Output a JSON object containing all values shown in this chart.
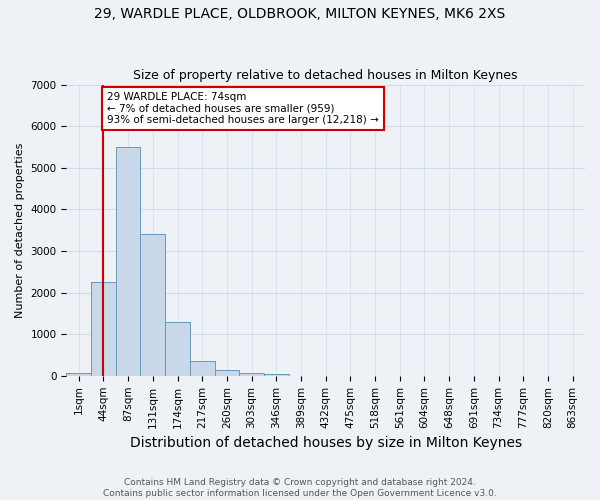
{
  "title1": "29, WARDLE PLACE, OLDBROOK, MILTON KEYNES, MK6 2XS",
  "title2": "Size of property relative to detached houses in Milton Keynes",
  "xlabel": "Distribution of detached houses by size in Milton Keynes",
  "ylabel": "Number of detached properties",
  "footnote": "Contains HM Land Registry data © Crown copyright and database right 2024.\nContains public sector information licensed under the Open Government Licence v3.0.",
  "bar_categories": [
    "1sqm",
    "44sqm",
    "87sqm",
    "131sqm",
    "174sqm",
    "217sqm",
    "260sqm",
    "303sqm",
    "346sqm",
    "389sqm",
    "432sqm",
    "475sqm",
    "518sqm",
    "561sqm",
    "604sqm",
    "648sqm",
    "691sqm",
    "734sqm",
    "777sqm",
    "820sqm",
    "863sqm"
  ],
  "bar_values": [
    75,
    2250,
    5500,
    3400,
    1300,
    350,
    150,
    75,
    50,
    0,
    0,
    0,
    0,
    0,
    0,
    0,
    0,
    0,
    0,
    0,
    0
  ],
  "bar_color": "#c8d8e8",
  "bar_edge_color": "#6699bb",
  "property_bin_index": 1,
  "vline_color": "#cc0000",
  "annotation_text": "29 WARDLE PLACE: 74sqm\n← 7% of detached houses are smaller (959)\n93% of semi-detached houses are larger (12,218) →",
  "annotation_box_color": "#ffffff",
  "annotation_box_edge_color": "#cc0000",
  "ylim": [
    0,
    7000
  ],
  "yticks": [
    0,
    1000,
    2000,
    3000,
    4000,
    5000,
    6000,
    7000
  ],
  "grid_color": "#ccddee",
  "background_color": "#eef2f7",
  "title1_fontsize": 10,
  "title2_fontsize": 9,
  "xlabel_fontsize": 10,
  "ylabel_fontsize": 8,
  "tick_fontsize": 7.5,
  "annotation_fontsize": 7.5,
  "footnote_fontsize": 6.5
}
